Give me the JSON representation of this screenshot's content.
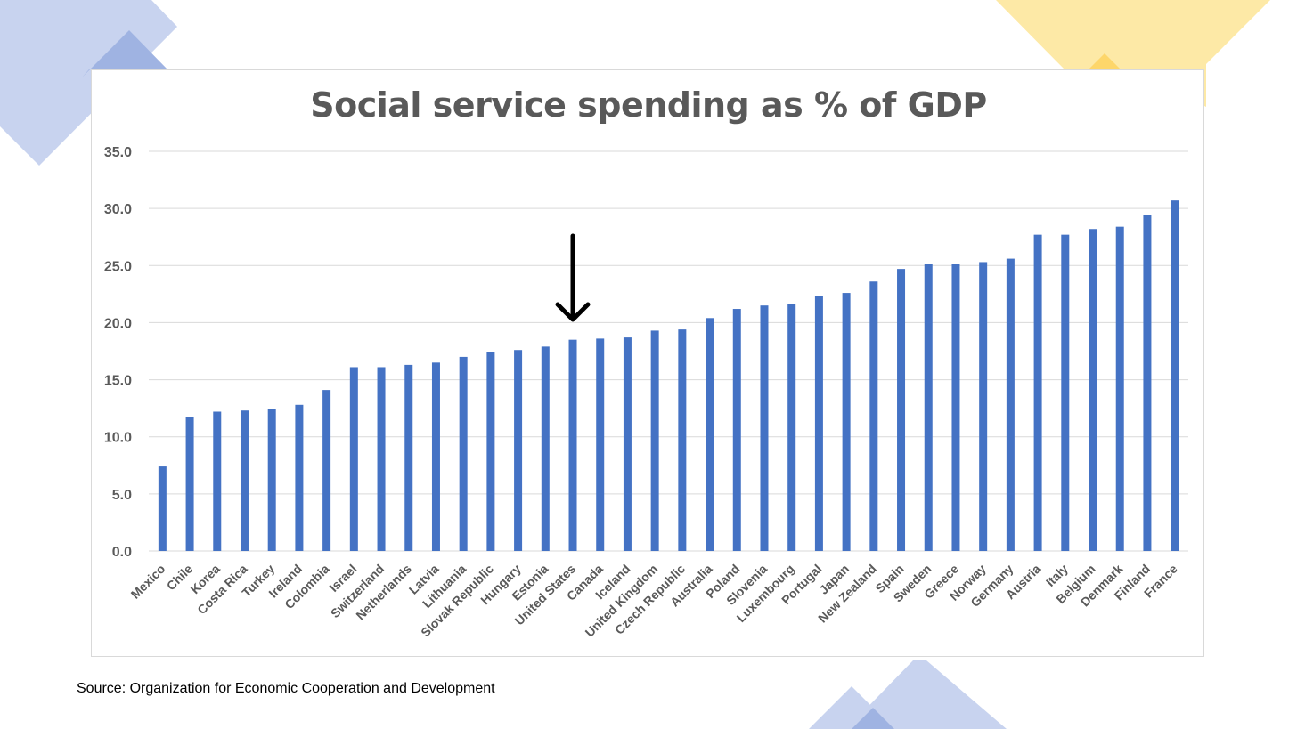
{
  "colors": {
    "bar": "#4472c4",
    "grid": "#d9d9d9",
    "tick_text": "#595959",
    "title_text": "#595959",
    "arrow": "#000000",
    "deco_blue": "#aebfe6",
    "deco_blue_dark": "#8fa7dc",
    "deco_yellow": "#fde79c",
    "deco_yellow_dark": "#fdd66a"
  },
  "source_note": "Source: Organization for Economic Cooperation and Development",
  "annotation": {
    "icon": "down-arrow-icon",
    "points_to": "United States"
  },
  "chart_data": {
    "type": "bar",
    "title": "Social service spending as % of GDP",
    "xlabel": "",
    "ylabel": "",
    "ylim": [
      0,
      35
    ],
    "yticks": [
      "0.0",
      "5.0",
      "10.0",
      "15.0",
      "20.0",
      "25.0",
      "30.0",
      "35.0"
    ],
    "grid": true,
    "legend": "none",
    "categories": [
      "Mexico",
      "Chile",
      "Korea",
      "Costa Rica",
      "Turkey",
      "Ireland",
      "Colombia",
      "Israel",
      "Switzerland",
      "Netherlands",
      "Latvia",
      "Lithuania",
      "Slovak Republic",
      "Hungary",
      "Estonia",
      "United States",
      "Canada",
      "Iceland",
      "United Kingdom",
      "Czech Republic",
      "Australia",
      "Poland",
      "Slovenia",
      "Luxembourg",
      "Portugal",
      "Japan",
      "New Zealand",
      "Spain",
      "Sweden",
      "Greece",
      "Norway",
      "Germany",
      "Austria",
      "Italy",
      "Belgium",
      "Denmark",
      "Finland",
      "France"
    ],
    "values": [
      7.4,
      11.7,
      12.2,
      12.3,
      12.4,
      12.8,
      14.1,
      16.1,
      16.1,
      16.3,
      16.5,
      17.0,
      17.4,
      17.6,
      17.9,
      18.5,
      18.6,
      18.7,
      19.3,
      19.4,
      20.4,
      21.2,
      21.5,
      21.6,
      22.3,
      22.6,
      23.6,
      24.7,
      25.1,
      25.1,
      25.3,
      25.6,
      27.7,
      27.7,
      28.2,
      28.4,
      29.4,
      30.7
    ]
  }
}
